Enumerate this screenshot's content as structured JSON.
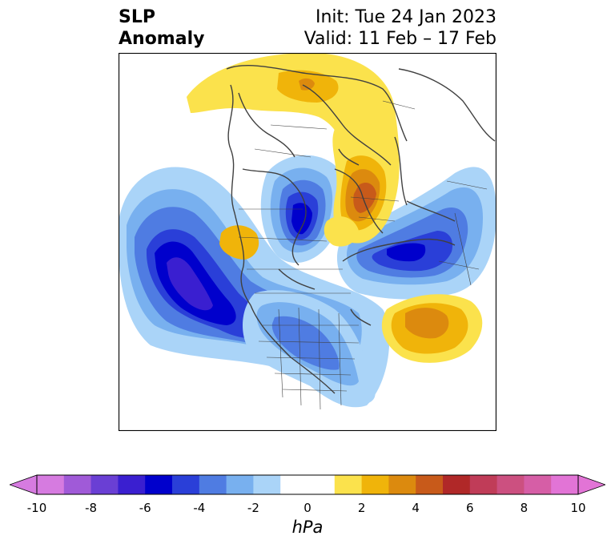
{
  "title": {
    "left_line1": "SLP",
    "left_line2": "Anomaly",
    "init": "Init: Tue 24 Jan 2023",
    "valid": "Valid: 11 Feb – 17 Feb"
  },
  "colorbar": {
    "label": "hPa",
    "ticks": [
      "-10",
      "-8",
      "-6",
      "-4",
      "-2",
      "0",
      "2",
      "4",
      "6",
      "8",
      "10"
    ],
    "colors": [
      "#d67be0",
      "#a05ad8",
      "#6a3fd4",
      "#3a1fd0",
      "#0000cc",
      "#2a3fd8",
      "#4f7ce2",
      "#78b0ef",
      "#aad4f8",
      "#ffffff",
      "#ffffff",
      "#fbe24c",
      "#f0b40a",
      "#dc8a0e",
      "#c85a1a",
      "#b02828",
      "#c03c58",
      "#cc5080",
      "#d65ea6",
      "#e274d6"
    ],
    "under_color": "#d67be0",
    "over_color": "#e274d6"
  },
  "map": {
    "projection": "north-polar-stereographic",
    "land_color": "#ffffff",
    "coast_color": "#404040"
  }
}
